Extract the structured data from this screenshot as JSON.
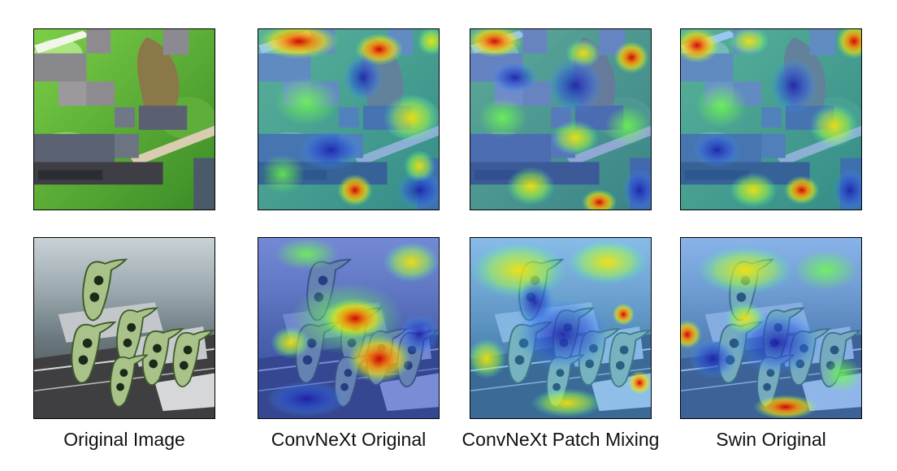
{
  "captions": {
    "original_image": "Original Image",
    "convnext_original": "ConvNeXt Original",
    "convnext_patch_mixing": "ConvNeXt Patch Mixing",
    "swin_original": "Swin Original"
  }
}
